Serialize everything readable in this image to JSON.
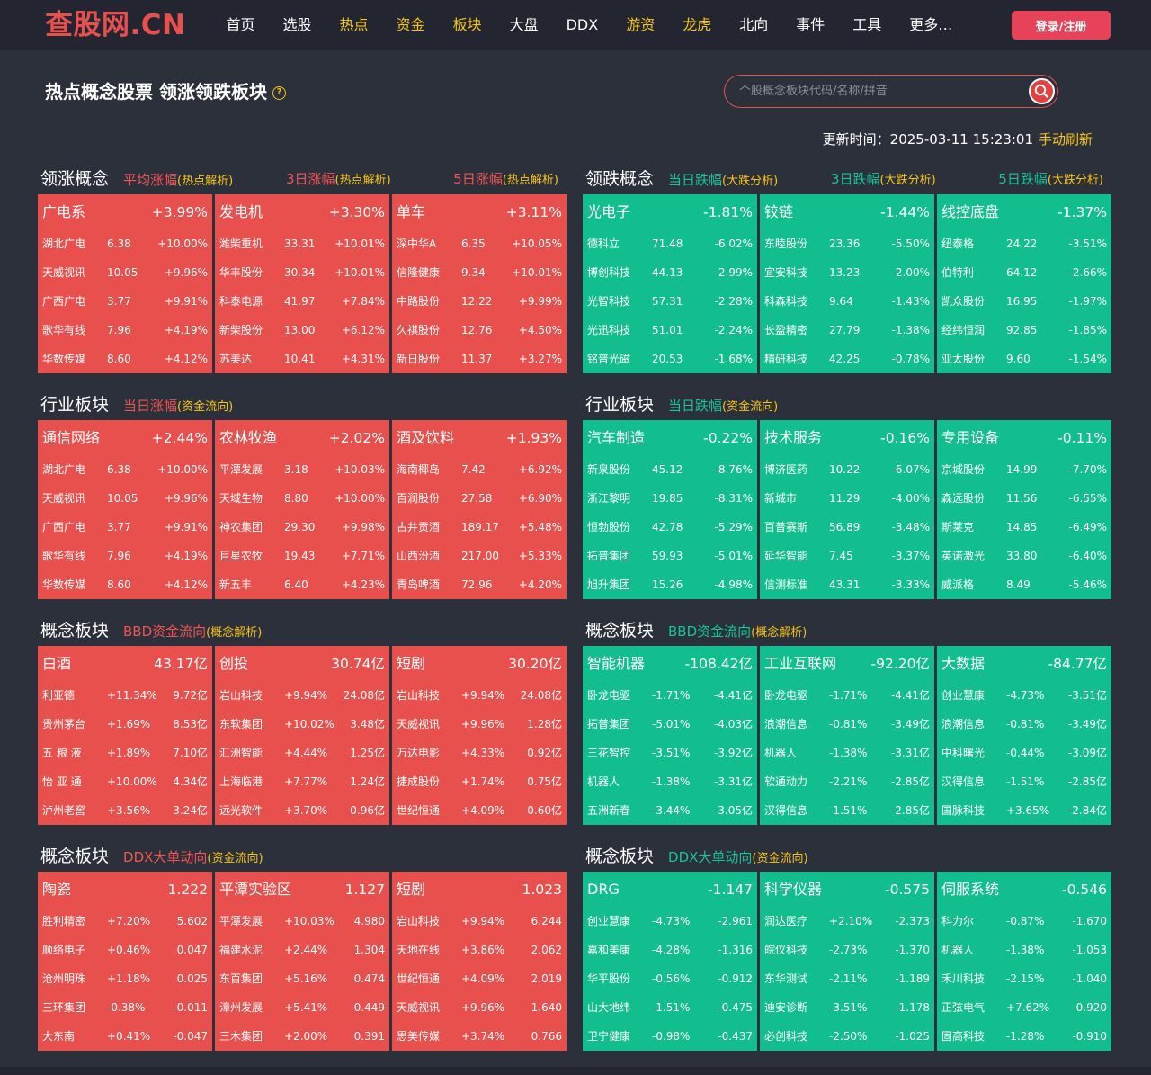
{
  "nav": {
    "logo": "查股网.CN",
    "items": [
      {
        "label": "首页",
        "color": "#ffffff"
      },
      {
        "label": "选股",
        "color": "#ffffff"
      },
      {
        "label": "热点",
        "color": "#f5c518"
      },
      {
        "label": "资金",
        "color": "#f5c518"
      },
      {
        "label": "板块",
        "color": "#f5c518"
      },
      {
        "label": "大盘",
        "color": "#ffffff"
      },
      {
        "label": "DDX",
        "color": "#ffffff"
      },
      {
        "label": "游资",
        "color": "#f5c518"
      },
      {
        "label": "龙虎",
        "color": "#f5c518"
      },
      {
        "label": "北向",
        "color": "#ffffff"
      },
      {
        "label": "事件",
        "color": "#ffffff"
      },
      {
        "label": "工具",
        "color": "#ffffff"
      },
      {
        "label": "更多…",
        "color": "#ffffff"
      }
    ],
    "login_label": "登录/注册"
  },
  "page": {
    "title": "热点概念股票 领涨领跌板块",
    "search_placeholder": "个股概念板块代码/名称/拼音",
    "update_label": "更新时间：2025-03-11 15:23:01",
    "refresh_label": "手动刷新"
  },
  "colors": {
    "up": "#e8504e",
    "down": "#13be8e",
    "accent": "#f5c518"
  },
  "sections": [
    {
      "title": "领涨概念",
      "tone": "up",
      "links": [
        {
          "main": "平均涨幅",
          "sub": "(热点解析)",
          "pos": "left"
        },
        {
          "main": "3日涨幅",
          "sub": "(热点解析)",
          "pos": "mid"
        },
        {
          "main": "5日涨幅",
          "sub": "(热点解析)",
          "pos": "right"
        }
      ],
      "layout": "a",
      "cards": [
        {
          "name": "广电系",
          "value": "+3.99%",
          "rows": [
            [
              "湖北广电",
              "6.38",
              "+10.00%"
            ],
            [
              "天威视讯",
              "10.05",
              "+9.96%"
            ],
            [
              "广西广电",
              "3.77",
              "+9.91%"
            ],
            [
              "歌华有线",
              "7.96",
              "+4.19%"
            ],
            [
              "华数传媒",
              "8.60",
              "+4.12%"
            ]
          ]
        },
        {
          "name": "发电机",
          "value": "+3.30%",
          "rows": [
            [
              "潍柴重机",
              "33.31",
              "+10.01%"
            ],
            [
              "华丰股份",
              "30.34",
              "+10.01%"
            ],
            [
              "科泰电源",
              "41.97",
              "+7.84%"
            ],
            [
              "新柴股份",
              "13.00",
              "+6.12%"
            ],
            [
              "苏美达",
              "10.41",
              "+4.31%"
            ]
          ]
        },
        {
          "name": "单车",
          "value": "+3.11%",
          "rows": [
            [
              "深中华A",
              "6.35",
              "+10.05%"
            ],
            [
              "信隆健康",
              "9.34",
              "+10.01%"
            ],
            [
              "中路股份",
              "12.22",
              "+9.99%"
            ],
            [
              "久祺股份",
              "12.76",
              "+4.50%"
            ],
            [
              "新日股份",
              "11.37",
              "+3.27%"
            ]
          ]
        }
      ]
    },
    {
      "title": "领跌概念",
      "tone": "down",
      "links": [
        {
          "main": "当日跌幅",
          "sub": "(大跌分析)",
          "pos": "left"
        },
        {
          "main": "3日跌幅",
          "sub": "(大跌分析)",
          "pos": "mid"
        },
        {
          "main": "5日跌幅",
          "sub": "(大跌分析)",
          "pos": "right"
        }
      ],
      "layout": "a",
      "cards": [
        {
          "name": "光电子",
          "value": "-1.81%",
          "rows": [
            [
              "德科立",
              "71.48",
              "-6.02%"
            ],
            [
              "博创科技",
              "44.13",
              "-2.99%"
            ],
            [
              "光智科技",
              "57.31",
              "-2.28%"
            ],
            [
              "光迅科技",
              "51.01",
              "-2.24%"
            ],
            [
              "铭普光磁",
              "20.53",
              "-1.68%"
            ]
          ]
        },
        {
          "name": "铰链",
          "value": "-1.44%",
          "rows": [
            [
              "东睦股份",
              "23.36",
              "-5.50%"
            ],
            [
              "宜安科技",
              "13.23",
              "-2.00%"
            ],
            [
              "科森科技",
              "9.64",
              "-1.43%"
            ],
            [
              "长盈精密",
              "27.79",
              "-1.38%"
            ],
            [
              "精研科技",
              "42.25",
              "-0.78%"
            ]
          ]
        },
        {
          "name": "线控底盘",
          "value": "-1.37%",
          "rows": [
            [
              "纽泰格",
              "24.22",
              "-3.51%"
            ],
            [
              "伯特利",
              "64.12",
              "-2.66%"
            ],
            [
              "凯众股份",
              "16.95",
              "-1.97%"
            ],
            [
              "经纬恒润",
              "92.85",
              "-1.85%"
            ],
            [
              "亚太股份",
              "9.60",
              "-1.54%"
            ]
          ]
        }
      ]
    },
    {
      "title": "行业板块",
      "tone": "up",
      "links": [
        {
          "main": "当日涨幅",
          "sub": "(资金流向)",
          "pos": "left"
        }
      ],
      "layout": "a",
      "cards": [
        {
          "name": "通信网络",
          "value": "+2.44%",
          "rows": [
            [
              "湖北广电",
              "6.38",
              "+10.00%"
            ],
            [
              "天威视讯",
              "10.05",
              "+9.96%"
            ],
            [
              "广西广电",
              "3.77",
              "+9.91%"
            ],
            [
              "歌华有线",
              "7.96",
              "+4.19%"
            ],
            [
              "华数传媒",
              "8.60",
              "+4.12%"
            ]
          ]
        },
        {
          "name": "农林牧渔",
          "value": "+2.02%",
          "rows": [
            [
              "平潭发展",
              "3.18",
              "+10.03%"
            ],
            [
              "天域生物",
              "8.80",
              "+10.00%"
            ],
            [
              "神农集团",
              "29.30",
              "+9.98%"
            ],
            [
              "巨星农牧",
              "19.43",
              "+7.71%"
            ],
            [
              "新五丰",
              "6.40",
              "+4.23%"
            ]
          ]
        },
        {
          "name": "酒及饮料",
          "value": "+1.93%",
          "rows": [
            [
              "海南椰岛",
              "7.42",
              "+6.92%"
            ],
            [
              "百润股份",
              "27.58",
              "+6.90%"
            ],
            [
              "古井贡酒",
              "189.17",
              "+5.48%"
            ],
            [
              "山西汾酒",
              "217.00",
              "+5.33%"
            ],
            [
              "青岛啤酒",
              "72.96",
              "+4.20%"
            ]
          ]
        }
      ]
    },
    {
      "title": "行业板块",
      "tone": "down",
      "links": [
        {
          "main": "当日跌幅",
          "sub": "(资金流向)",
          "pos": "left"
        }
      ],
      "layout": "a",
      "cards": [
        {
          "name": "汽车制造",
          "value": "-0.22%",
          "rows": [
            [
              "新泉股份",
              "45.12",
              "-8.76%"
            ],
            [
              "浙江黎明",
              "19.85",
              "-8.31%"
            ],
            [
              "恒勃股份",
              "42.78",
              "-5.29%"
            ],
            [
              "拓普集团",
              "59.93",
              "-5.01%"
            ],
            [
              "旭升集团",
              "15.26",
              "-4.98%"
            ]
          ]
        },
        {
          "name": "技术服务",
          "value": "-0.16%",
          "rows": [
            [
              "博济医药",
              "10.22",
              "-6.07%"
            ],
            [
              "新城市",
              "11.29",
              "-4.00%"
            ],
            [
              "百普赛斯",
              "56.89",
              "-3.48%"
            ],
            [
              "延华智能",
              "7.45",
              "-3.37%"
            ],
            [
              "信测标准",
              "43.31",
              "-3.33%"
            ]
          ]
        },
        {
          "name": "专用设备",
          "value": "-0.11%",
          "rows": [
            [
              "京城股份",
              "14.99",
              "-7.70%"
            ],
            [
              "森远股份",
              "11.56",
              "-6.55%"
            ],
            [
              "斯莱克",
              "14.85",
              "-6.49%"
            ],
            [
              "英诺激光",
              "33.80",
              "-6.40%"
            ],
            [
              "威派格",
              "8.49",
              "-5.46%"
            ]
          ]
        }
      ]
    },
    {
      "title": "概念板块",
      "tone": "up",
      "links": [
        {
          "main": "BBD资金流向",
          "sub": "(概念解析)",
          "pos": "left"
        }
      ],
      "layout": "b",
      "cards": [
        {
          "name": "白酒",
          "value": "43.17亿",
          "rows": [
            [
              "利亚德",
              "+11.34%",
              "9.72亿"
            ],
            [
              "贵州茅台",
              "+1.69%",
              "8.53亿"
            ],
            [
              "五 粮 液",
              "+1.89%",
              "7.10亿"
            ],
            [
              "怡 亚 通",
              "+10.00%",
              "4.34亿"
            ],
            [
              "泸州老窖",
              "+3.56%",
              "3.24亿"
            ]
          ]
        },
        {
          "name": "创投",
          "value": "30.74亿",
          "rows": [
            [
              "岩山科技",
              "+9.94%",
              "24.08亿"
            ],
            [
              "东软集团",
              "+10.02%",
              "3.48亿"
            ],
            [
              "汇洲智能",
              "+4.44%",
              "1.25亿"
            ],
            [
              "上海临港",
              "+7.77%",
              "1.24亿"
            ],
            [
              "远光软件",
              "+3.70%",
              "0.96亿"
            ]
          ]
        },
        {
          "name": "短剧",
          "value": "30.20亿",
          "rows": [
            [
              "岩山科技",
              "+9.94%",
              "24.08亿"
            ],
            [
              "天威视讯",
              "+9.96%",
              "1.28亿"
            ],
            [
              "万达电影",
              "+4.33%",
              "0.92亿"
            ],
            [
              "捷成股份",
              "+1.74%",
              "0.75亿"
            ],
            [
              "世纪恒通",
              "+4.09%",
              "0.60亿"
            ]
          ]
        }
      ]
    },
    {
      "title": "概念板块",
      "tone": "down",
      "links": [
        {
          "main": "BBD资金流向",
          "sub": "(概念解析)",
          "pos": "left"
        }
      ],
      "layout": "b",
      "cards": [
        {
          "name": "智能机器",
          "value": "-108.42亿",
          "rows": [
            [
              "卧龙电驱",
              "-1.71%",
              "-4.41亿"
            ],
            [
              "拓普集团",
              "-5.01%",
              "-4.03亿"
            ],
            [
              "三花智控",
              "-3.51%",
              "-3.92亿"
            ],
            [
              "机器人",
              "-1.38%",
              "-3.31亿"
            ],
            [
              "五洲新春",
              "-3.44%",
              "-3.05亿"
            ]
          ]
        },
        {
          "name": "工业互联网",
          "value": "-92.20亿",
          "rows": [
            [
              "卧龙电驱",
              "-1.71%",
              "-4.41亿"
            ],
            [
              "浪潮信息",
              "-0.81%",
              "-3.49亿"
            ],
            [
              "机器人",
              "-1.38%",
              "-3.31亿"
            ],
            [
              "软通动力",
              "-2.21%",
              "-2.85亿"
            ],
            [
              "汉得信息",
              "-1.51%",
              "-2.85亿"
            ]
          ]
        },
        {
          "name": "大数据",
          "value": "-84.77亿",
          "rows": [
            [
              "创业慧康",
              "-4.73%",
              "-3.51亿"
            ],
            [
              "浪潮信息",
              "-0.81%",
              "-3.49亿"
            ],
            [
              "中科曙光",
              "-0.44%",
              "-3.09亿"
            ],
            [
              "汉得信息",
              "-1.51%",
              "-2.85亿"
            ],
            [
              "国脉科技",
              "+3.65%",
              "-2.84亿"
            ]
          ]
        }
      ]
    },
    {
      "title": "概念板块",
      "tone": "up",
      "links": [
        {
          "main": "DDX大单动向",
          "sub": "(资金流向)",
          "pos": "left"
        }
      ],
      "layout": "b",
      "cards": [
        {
          "name": "陶瓷",
          "value": "1.222",
          "rows": [
            [
              "胜利精密",
              "+7.20%",
              "5.602"
            ],
            [
              "顺络电子",
              "+0.46%",
              "0.047"
            ],
            [
              "沧州明珠",
              "+1.18%",
              "0.025"
            ],
            [
              "三环集团",
              "-0.38%",
              "-0.011"
            ],
            [
              "大东南",
              "+0.41%",
              "-0.047"
            ]
          ]
        },
        {
          "name": "平潭实验区",
          "value": "1.127",
          "rows": [
            [
              "平潭发展",
              "+10.03%",
              "4.980"
            ],
            [
              "福建水泥",
              "+2.44%",
              "1.304"
            ],
            [
              "东百集团",
              "+5.16%",
              "0.474"
            ],
            [
              "漳州发展",
              "+5.41%",
              "0.449"
            ],
            [
              "三木集团",
              "+2.00%",
              "0.391"
            ]
          ]
        },
        {
          "name": "短剧",
          "value": "1.023",
          "rows": [
            [
              "岩山科技",
              "+9.94%",
              "6.244"
            ],
            [
              "天地在线",
              "+3.86%",
              "2.062"
            ],
            [
              "世纪恒通",
              "+4.09%",
              "2.019"
            ],
            [
              "天威视讯",
              "+9.96%",
              "1.640"
            ],
            [
              "思美传媒",
              "+3.74%",
              "0.766"
            ]
          ]
        }
      ]
    },
    {
      "title": "概念板块",
      "tone": "down",
      "links": [
        {
          "main": "DDX大单动向",
          "sub": "(资金流向)",
          "pos": "left"
        }
      ],
      "layout": "b",
      "cards": [
        {
          "name": "DRG",
          "value": "-1.147",
          "rows": [
            [
              "创业慧康",
              "-4.73%",
              "-2.961"
            ],
            [
              "嘉和美康",
              "-4.28%",
              "-1.316"
            ],
            [
              "华平股份",
              "-0.56%",
              "-0.912"
            ],
            [
              "山大地纬",
              "-1.51%",
              "-0.475"
            ],
            [
              "卫宁健康",
              "-0.98%",
              "-0.437"
            ]
          ]
        },
        {
          "name": "科学仪器",
          "value": "-0.575",
          "rows": [
            [
              "润达医疗",
              "+2.10%",
              "-2.373"
            ],
            [
              "皖仪科技",
              "-2.73%",
              "-1.370"
            ],
            [
              "东华测试",
              "-2.11%",
              "-1.189"
            ],
            [
              "迪安诊断",
              "-3.51%",
              "-1.178"
            ],
            [
              "必创科技",
              "-2.50%",
              "-1.025"
            ]
          ]
        },
        {
          "name": "伺服系统",
          "value": "-0.546",
          "rows": [
            [
              "科力尔",
              "-0.87%",
              "-1.670"
            ],
            [
              "机器人",
              "-1.38%",
              "-1.053"
            ],
            [
              "禾川科技",
              "-2.15%",
              "-1.040"
            ],
            [
              "正弦电气",
              "+7.62%",
              "-0.920"
            ],
            [
              "固高科技",
              "-1.28%",
              "-0.910"
            ]
          ]
        }
      ]
    }
  ]
}
